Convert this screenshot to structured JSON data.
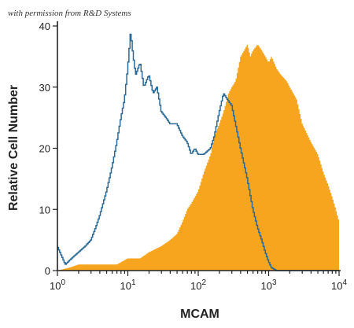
{
  "watermark": "with permission from R&D Systems",
  "chart_data": {
    "type": "area",
    "title": "",
    "xlabel": "MCAM",
    "ylabel": "Relative Cell Number",
    "xscale": "log",
    "xlim": [
      1,
      10000
    ],
    "ylim": [
      0,
      40
    ],
    "x_ticks": [
      {
        "value": 1,
        "base": "10",
        "exp": "0"
      },
      {
        "value": 10,
        "base": "10",
        "exp": "1"
      },
      {
        "value": 100,
        "base": "10",
        "exp": "2"
      },
      {
        "value": 1000,
        "base": "10",
        "exp": "3"
      },
      {
        "value": 10000,
        "base": "10",
        "exp": "4"
      }
    ],
    "y_ticks": [
      0,
      10,
      20,
      30,
      40
    ],
    "grid": false,
    "legend": "none",
    "series": [
      {
        "style": "outline",
        "color": "#2b6a96",
        "x": [
          1,
          1.3,
          1.6,
          2,
          2.5,
          3,
          3.5,
          4,
          5,
          6,
          7,
          8,
          9,
          10,
          10.5,
          11,
          12,
          13,
          15,
          17,
          20,
          23,
          26,
          30,
          35,
          40,
          50,
          60,
          70,
          80,
          90,
          100,
          120,
          150,
          170,
          200,
          230,
          260,
          300,
          340,
          400,
          500,
          600,
          700,
          800,
          900,
          1000,
          1100,
          1300,
          2000,
          5000,
          10000
        ],
        "y": [
          4,
          1,
          2,
          3,
          4,
          5,
          7,
          9,
          13,
          17,
          21,
          25,
          28,
          33,
          36,
          39,
          35,
          32,
          34,
          30,
          32,
          29,
          30,
          26,
          25,
          24,
          24,
          22,
          21,
          19,
          20,
          19,
          19,
          20,
          22,
          26,
          29,
          28,
          27,
          24,
          20,
          15,
          10,
          7,
          5,
          3,
          1.5,
          0.5,
          0,
          0,
          0,
          0
        ]
      },
      {
        "style": "filled",
        "color": "#f7a51f",
        "x": [
          1,
          1.5,
          2,
          3,
          4,
          5,
          7,
          10,
          15,
          20,
          30,
          40,
          50,
          60,
          70,
          80,
          100,
          120,
          150,
          170,
          200,
          230,
          270,
          300,
          340,
          400,
          450,
          500,
          550,
          600,
          700,
          800,
          900,
          1000,
          1100,
          1300,
          1500,
          1800,
          2000,
          2500,
          3000,
          4000,
          5000,
          6000,
          7000,
          8000,
          9000,
          10000
        ],
        "y": [
          0,
          0.5,
          1,
          1,
          1,
          1,
          1,
          2,
          2,
          3,
          4,
          5,
          6,
          8,
          10,
          11,
          13,
          16,
          19,
          22,
          24,
          26,
          29,
          30,
          31,
          35,
          36,
          37,
          35,
          36,
          37,
          36,
          35,
          34,
          35,
          33,
          32,
          31,
          30,
          28,
          24,
          21,
          19,
          16,
          14,
          12,
          10,
          8
        ]
      }
    ]
  }
}
